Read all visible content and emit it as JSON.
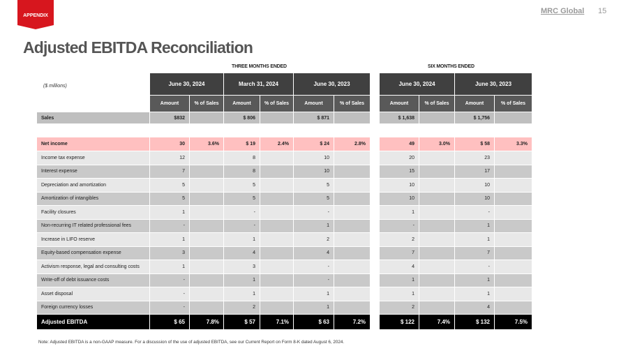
{
  "header": {
    "section_tag": "APPENDIX",
    "logo": "MRC Global",
    "page_number": "15",
    "title": "Adjusted EBITDA Reconciliation"
  },
  "table": {
    "units": "($ millions)",
    "group_headers": [
      "THREE MONTHS ENDED",
      "SIX MONTHS ENDED"
    ],
    "period_headers": [
      "June 30, 2024",
      "March 31, 2024",
      "June 30, 2023",
      "June 30, 2024",
      "June 30, 2023"
    ],
    "sub_headers": [
      "Amount",
      "% of Sales"
    ],
    "sales": {
      "label": "Sales",
      "values": [
        "$832",
        "",
        "$ 806",
        "",
        "$ 871",
        "",
        "$ 1,638",
        "",
        "$ 1,756",
        ""
      ]
    },
    "net_income": {
      "label": "Net income",
      "values": [
        "30",
        "3.6%",
        "$ 19",
        "2.4%",
        "$ 24",
        "2.8%",
        "49",
        "3.0%",
        "$ 58",
        "3.3%"
      ]
    },
    "rows": [
      {
        "label": "Income tax expense",
        "values": [
          "12",
          "",
          "8",
          "",
          "10",
          "",
          "20",
          "",
          "23",
          ""
        ]
      },
      {
        "label": "Interest expense",
        "values": [
          "7",
          "",
          "8",
          "",
          "10",
          "",
          "15",
          "",
          "17",
          ""
        ]
      },
      {
        "label": "Depreciation  and amortization",
        "values": [
          "5",
          "",
          "5",
          "",
          "5",
          "",
          "10",
          "",
          "10",
          ""
        ]
      },
      {
        "label": "Amortization  of intangibles",
        "values": [
          "5",
          "",
          "5",
          "",
          "5",
          "",
          "10",
          "",
          "10",
          ""
        ]
      },
      {
        "label": "Facility closures",
        "values": [
          "1",
          "",
          "-",
          "",
          "-",
          "",
          "1",
          "",
          "-",
          ""
        ]
      },
      {
        "label": "Non-recurring  IT related professional  fees",
        "values": [
          "-",
          "",
          "-",
          "",
          "1",
          "",
          "-",
          "",
          "1",
          ""
        ]
      },
      {
        "label": "Increase  in LIFO reserve",
        "values": [
          "1",
          "",
          "1",
          "",
          "2",
          "",
          "2",
          "",
          "1",
          ""
        ]
      },
      {
        "label": "Equity-based compensation  expense",
        "values": [
          "3",
          "",
          "4",
          "",
          "4",
          "",
          "7",
          "",
          "7",
          ""
        ]
      },
      {
        "label": "Activism response,  legal  and consulting  costs",
        "values": [
          "1",
          "",
          "3",
          "",
          "-",
          "",
          "4",
          "",
          "-",
          ""
        ]
      },
      {
        "label": "Write-off  of debt issuance  costs",
        "values": [
          "-",
          "",
          "1",
          "",
          "-",
          "",
          "1",
          "",
          "1",
          ""
        ]
      },
      {
        "label": "Asset disposal",
        "values": [
          "-",
          "",
          "1",
          "",
          "1",
          "",
          "1",
          "",
          "1",
          ""
        ]
      },
      {
        "label": "Foreign  currency losses",
        "values": [
          "-",
          "",
          "2",
          "",
          "1",
          "",
          "2",
          "",
          "4",
          ""
        ]
      }
    ],
    "adjusted_ebitda": {
      "label": "Adjusted EBITDA",
      "values": [
        "$ 65",
        "7.8%",
        "$ 57",
        "7.1%",
        "$ 63",
        "7.2%",
        "$ 122",
        "7.4%",
        "$ 132",
        "7.5%"
      ]
    }
  },
  "note": "Note: Adjusted EBITDA is a non-GAAP measure. For a discussion of the use of adjusted EBITDA, see our Current Report on Form 8-K dated August 6, 2024.",
  "colors": {
    "accent": "#d7161e",
    "net_income_row": "#ffc0c0",
    "header_dark": "#404040"
  }
}
